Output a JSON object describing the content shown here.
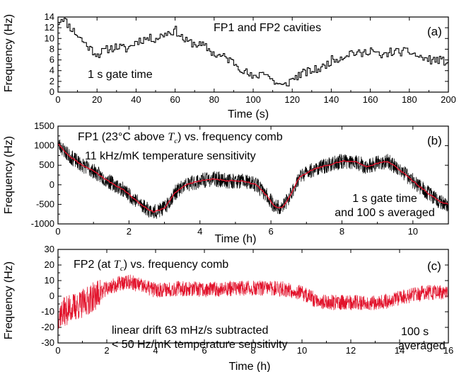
{
  "chart_data": [
    {
      "type": "line",
      "panel_label": "(a)",
      "annotations": [
        "FP1 and FP2 cavities",
        "1 s gate time"
      ],
      "xlabel": "Time (s)",
      "ylabel": "Frequency (Hz)",
      "xlim": [
        0,
        200
      ],
      "ylim": [
        0,
        14
      ],
      "xticks": [
        0,
        20,
        40,
        60,
        80,
        100,
        120,
        140,
        160,
        180,
        200
      ],
      "yticks": [
        0,
        2,
        4,
        6,
        8,
        10,
        12,
        14
      ],
      "color": "#000000",
      "series": [
        {
          "x": [
            0,
            2,
            5,
            10,
            15,
            20,
            25,
            30,
            35,
            40,
            45,
            50,
            55,
            60,
            65,
            70,
            75,
            80,
            85,
            90,
            95,
            100,
            105,
            110,
            115,
            120,
            125,
            130,
            135,
            140,
            145,
            150,
            155,
            160,
            165,
            170,
            175,
            180,
            185,
            190,
            195,
            200
          ],
          "values": [
            13,
            14,
            12.5,
            10.5,
            8.5,
            7,
            8,
            8.5,
            8,
            9.5,
            10,
            10,
            11,
            11.5,
            9.5,
            9,
            8.5,
            7,
            6.5,
            5.5,
            4,
            2.5,
            4,
            2,
            1,
            2.5,
            3.5,
            4,
            4.5,
            6,
            6.5,
            7.5,
            7,
            8,
            6.5,
            7.5,
            7.5,
            7.5,
            6.5,
            6,
            6,
            5.5
          ]
        }
      ]
    },
    {
      "type": "line",
      "panel_label": "(b)",
      "annotations": [
        "FP1 (23°C above ",
        "T",
        "c",
        ") vs. frequency comb",
        "11 kHz/mK temperature sensitivity",
        "1 s gate time",
        "and 100 s averaged"
      ],
      "xlabel": "Time (h)",
      "ylabel": "Frequency (Hz)",
      "xlim": [
        0,
        11
      ],
      "ylim": [
        -1000,
        1500
      ],
      "xticks": [
        0,
        2,
        4,
        6,
        8,
        10
      ],
      "yticks": [
        -1000,
        -500,
        0,
        500,
        1000,
        1500
      ],
      "series": [
        {
          "name": "1 s gate time",
          "color": "#000000",
          "band_halfwidth": 200,
          "x": [
            0,
            0.3,
            0.6,
            1.0,
            1.4,
            1.8,
            2.2,
            2.5,
            2.7,
            3.0,
            3.3,
            3.6,
            4.0,
            4.4,
            4.8,
            5.2,
            5.6,
            5.9,
            6.1,
            6.3,
            6.5,
            6.8,
            7.2,
            7.6,
            8.0,
            8.4,
            8.7,
            9.0,
            9.3,
            9.6,
            10.0,
            10.4,
            10.8,
            11.0
          ],
          "values": [
            1050,
            750,
            550,
            350,
            100,
            -100,
            -400,
            -600,
            -700,
            -600,
            -200,
            0,
            100,
            150,
            100,
            100,
            0,
            -300,
            -550,
            -600,
            -350,
            200,
            400,
            500,
            600,
            600,
            450,
            550,
            600,
            400,
            100,
            -200,
            -450,
            -500
          ]
        },
        {
          "name": "100 s averaged",
          "color": "#e2122b",
          "x": [
            0,
            0.3,
            0.6,
            1.0,
            1.4,
            1.8,
            2.2,
            2.5,
            2.7,
            3.0,
            3.3,
            3.6,
            4.0,
            4.4,
            4.8,
            5.2,
            5.6,
            5.9,
            6.1,
            6.3,
            6.5,
            6.8,
            7.2,
            7.6,
            8.0,
            8.4,
            8.7,
            9.0,
            9.3,
            9.6,
            10.0,
            10.4,
            10.8,
            11.0
          ],
          "values": [
            1050,
            750,
            550,
            350,
            100,
            -100,
            -400,
            -600,
            -700,
            -600,
            -200,
            0,
            100,
            150,
            100,
            100,
            0,
            -300,
            -550,
            -600,
            -350,
            200,
            400,
            500,
            600,
            600,
            450,
            550,
            600,
            400,
            100,
            -200,
            -450,
            -500
          ]
        }
      ]
    },
    {
      "type": "line",
      "panel_label": "(c)",
      "annotations": [
        "FP2 (at ",
        "T",
        "c",
        ") vs. frequency comb",
        "linear drift 63 mHz/s subtracted",
        "< 50 Hz/mK temperature sensitivity",
        "100 s",
        "averaged"
      ],
      "xlabel": "Time (h)",
      "ylabel": "Frequency (Hz)",
      "xlim": [
        0,
        16
      ],
      "ylim": [
        -30,
        30
      ],
      "xticks": [
        0,
        2,
        4,
        6,
        8,
        10,
        12,
        14,
        16
      ],
      "yticks": [
        -30,
        -20,
        -10,
        0,
        10,
        20,
        30
      ],
      "color": "#e2122b",
      "series": [
        {
          "band_halfwidth": 5,
          "x": [
            0,
            0.5,
            1.0,
            1.5,
            2.0,
            2.5,
            3.0,
            3.5,
            4.0,
            5.0,
            6.0,
            7.0,
            8.0,
            9.0,
            9.5,
            10.0,
            10.5,
            11.0,
            12.0,
            13.0,
            13.5,
            14.0,
            15.0,
            16.0
          ],
          "values": [
            -12,
            -8,
            -5,
            0,
            5,
            8,
            9,
            6,
            4,
            5,
            4,
            5,
            5,
            5,
            4,
            2,
            -2,
            -4,
            -4,
            -4,
            -3,
            -1,
            2,
            3
          ]
        }
      ]
    }
  ]
}
